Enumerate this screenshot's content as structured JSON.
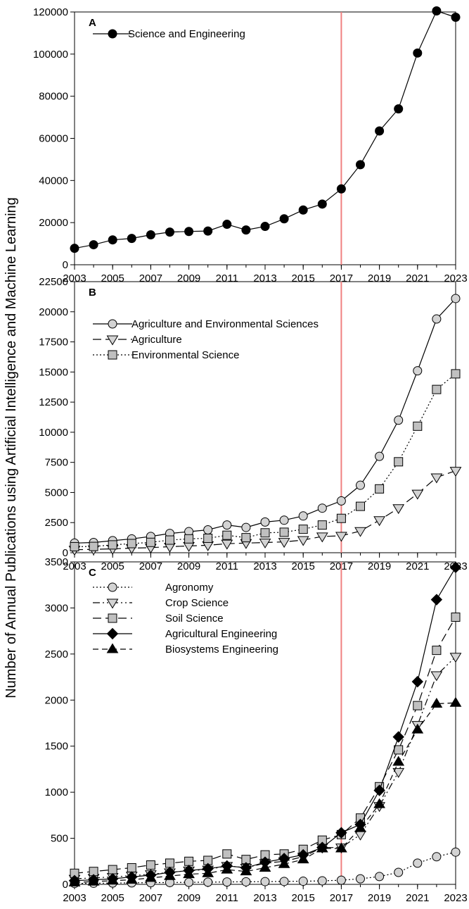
{
  "ylabel": "Number of Annual Publications using Artificial Intelligence and Machine Learning",
  "vline_x": 2017,
  "vline_color": "#f08080",
  "chart_data": [
    {
      "type": "line",
      "panel": "A",
      "x": [
        2003,
        2004,
        2005,
        2006,
        2007,
        2008,
        2009,
        2010,
        2011,
        2012,
        2013,
        2014,
        2015,
        2016,
        2017,
        2018,
        2019,
        2020,
        2021,
        2022,
        2023
      ],
      "xticks": [
        "2003",
        "2005",
        "2007",
        "2009",
        "2011",
        "2013",
        "2015",
        "2017",
        "2019",
        "2021",
        "2023"
      ],
      "ylim": [
        0,
        120000
      ],
      "yticks": [
        "0",
        "20000",
        "40000",
        "60000",
        "80000",
        "100000",
        "120000"
      ],
      "series": [
        {
          "name": "Science and Engineering",
          "marker": "circle",
          "fill": "#000000",
          "dash": "solid",
          "values": [
            7800,
            9500,
            11800,
            12500,
            14200,
            15500,
            15800,
            16000,
            19200,
            16500,
            18200,
            21800,
            26000,
            28800,
            36000,
            47500,
            63500,
            74000,
            100500,
            120500,
            117500
          ]
        }
      ]
    },
    {
      "type": "line",
      "panel": "B",
      "x": [
        2003,
        2004,
        2005,
        2006,
        2007,
        2008,
        2009,
        2010,
        2011,
        2012,
        2013,
        2014,
        2015,
        2016,
        2017,
        2018,
        2019,
        2020,
        2021,
        2022,
        2023
      ],
      "xticks": [
        "2003",
        "2005",
        "2007",
        "2009",
        "2011",
        "2013",
        "2015",
        "2017",
        "2019",
        "2021",
        "2023"
      ],
      "ylim": [
        0,
        22500
      ],
      "yticks": [
        "0",
        "2500",
        "5000",
        "7500",
        "10000",
        "12500",
        "15000",
        "17500",
        "20000",
        "22500"
      ],
      "series": [
        {
          "name": "Agriculture and Environmental Sciences",
          "marker": "circle",
          "fill": "#d3d3d3",
          "dash": "solid",
          "values": [
            800,
            850,
            1000,
            1150,
            1350,
            1600,
            1750,
            1900,
            2300,
            2100,
            2550,
            2700,
            3050,
            3700,
            4300,
            5600,
            8000,
            11000,
            15100,
            19400,
            21100
          ]
        },
        {
          "name": "Agriculture",
          "marker": "tri-down",
          "fill": "#d3d3d3",
          "dash": "longdash",
          "values": [
            250,
            280,
            320,
            380,
            420,
            500,
            560,
            620,
            750,
            800,
            850,
            900,
            1050,
            1350,
            1400,
            1800,
            2700,
            3700,
            4900,
            6250,
            6800
          ]
        },
        {
          "name": "Environmental Science",
          "marker": "square",
          "fill": "#c0c0c0",
          "dash": "dot",
          "values": [
            500,
            520,
            650,
            760,
            860,
            1050,
            1150,
            1200,
            1450,
            1250,
            1650,
            1700,
            1950,
            2300,
            2850,
            3850,
            5300,
            7550,
            10500,
            13550,
            14850
          ]
        }
      ]
    },
    {
      "type": "line",
      "panel": "C",
      "x": [
        2003,
        2004,
        2005,
        2006,
        2007,
        2008,
        2009,
        2010,
        2011,
        2012,
        2013,
        2014,
        2015,
        2016,
        2017,
        2018,
        2019,
        2020,
        2021,
        2022,
        2023
      ],
      "xticks": [
        "2003",
        "2005",
        "2007",
        "2009",
        "2011",
        "2013",
        "2015",
        "2017",
        "2019",
        "2021",
        "2023"
      ],
      "ylim": [
        0,
        3500
      ],
      "yticks": [
        "0",
        "500",
        "1000",
        "1500",
        "2000",
        "2500",
        "3000",
        "3500"
      ],
      "series": [
        {
          "name": "Agronomy",
          "marker": "circle",
          "fill": "#d3d3d3",
          "dash": "dot",
          "values": [
            10,
            12,
            14,
            16,
            18,
            20,
            22,
            24,
            26,
            28,
            30,
            32,
            34,
            38,
            45,
            60,
            85,
            130,
            230,
            300,
            350
          ]
        },
        {
          "name": "Crop Science",
          "marker": "tri-down",
          "fill": "#d3d3d3",
          "dash": "dashdotdot",
          "values": [
            60,
            70,
            80,
            95,
            110,
            130,
            150,
            160,
            200,
            180,
            230,
            250,
            300,
            400,
            400,
            540,
            850,
            1220,
            1730,
            2270,
            2470
          ]
        },
        {
          "name": "Soil Science",
          "marker": "square",
          "fill": "#c0c0c0",
          "dash": "longdash",
          "values": [
            120,
            140,
            160,
            180,
            210,
            230,
            250,
            260,
            330,
            270,
            320,
            330,
            380,
            480,
            540,
            720,
            1060,
            1460,
            1940,
            2540,
            2900
          ]
        },
        {
          "name": "Agricultural Engineering",
          "marker": "diamond",
          "fill": "#000000",
          "dash": "solid",
          "values": [
            40,
            50,
            60,
            80,
            100,
            130,
            150,
            170,
            200,
            180,
            240,
            280,
            320,
            400,
            560,
            650,
            1020,
            1600,
            2200,
            3090,
            3440
          ]
        },
        {
          "name": "Biosystems Engineering",
          "marker": "tri-up",
          "fill": "#000000",
          "dash": "dash",
          "values": [
            20,
            30,
            40,
            50,
            70,
            90,
            110,
            120,
            160,
            140,
            180,
            220,
            270,
            390,
            390,
            610,
            870,
            1330,
            1680,
            1960,
            1970
          ]
        }
      ]
    }
  ]
}
